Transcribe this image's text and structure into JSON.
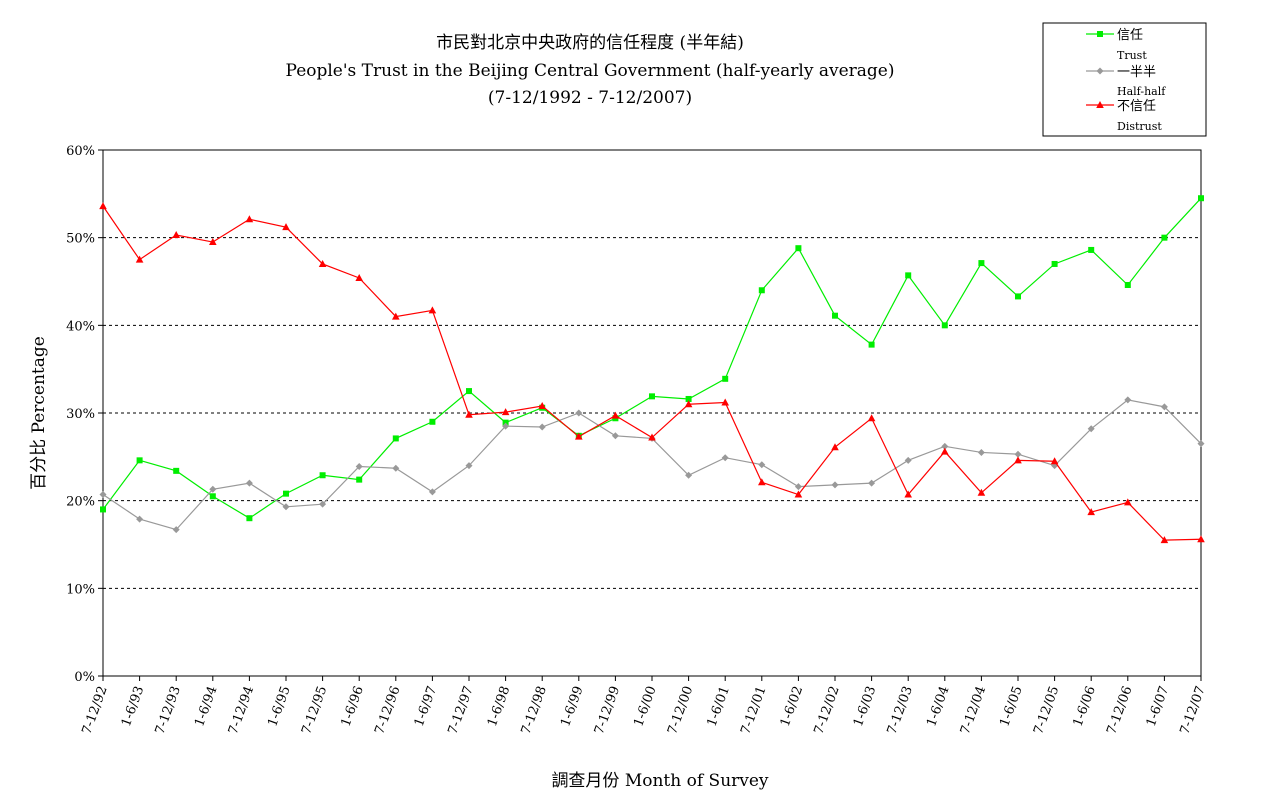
{
  "chart_data": {
    "type": "line",
    "title": [
      "市民對北京中央政府的信任程度 (半年結)",
      "People's Trust in the Beijing Central Government (half-yearly average)",
      "(7-12/1992 - 7-12/2007)"
    ],
    "xlabel": "調查月份 Month of Survey",
    "ylabel": "百分比 Percentage",
    "ylim": [
      0,
      60
    ],
    "yticks": [
      "0%",
      "10%",
      "20%",
      "30%",
      "40%",
      "50%",
      "60%"
    ],
    "grid": "horizontal dashed",
    "legend_position": "top-right",
    "categories": [
      "7-12/92",
      "1-6/93",
      "7-12/93",
      "1-6/94",
      "7-12/94",
      "1-6/95",
      "7-12/95",
      "1-6/96",
      "7-12/96",
      "1-6/97",
      "7-12/97",
      "1-6/98",
      "7-12/98",
      "1-6/99",
      "7-12/99",
      "1-6/00",
      "7-12/00",
      "1-6/01",
      "7-12/01",
      "1-6/02",
      "7-12/02",
      "1-6/03",
      "7-12/03",
      "1-6/04",
      "7-12/04",
      "1-6/05",
      "7-12/05",
      "1-6/06",
      "7-12/06",
      "1-6/07",
      "7-12/07"
    ],
    "series": [
      {
        "name": "信任",
        "name_en": "Trust",
        "color": "#00ee00",
        "marker": "square",
        "values": [
          19.0,
          24.6,
          23.4,
          20.5,
          18.0,
          20.8,
          22.9,
          22.4,
          27.1,
          29.0,
          32.5,
          28.9,
          30.6,
          27.4,
          29.4,
          31.9,
          31.6,
          33.9,
          44.0,
          48.8,
          41.1,
          37.8,
          45.7,
          40.0,
          47.1,
          43.3,
          47.0,
          48.6,
          44.6,
          50.0,
          54.5
        ]
      },
      {
        "name": "一半半",
        "name_en": "Half-half",
        "color": "#999999",
        "marker": "diamond",
        "values": [
          20.7,
          17.9,
          16.7,
          21.3,
          22.0,
          19.3,
          19.6,
          23.9,
          23.7,
          21.0,
          24.0,
          28.5,
          28.4,
          30.0,
          27.4,
          27.1,
          22.9,
          24.9,
          24.1,
          21.6,
          21.8,
          22.0,
          24.6,
          26.2,
          25.5,
          25.3,
          24.0,
          28.2,
          31.5,
          30.7,
          26.5
        ]
      },
      {
        "name": "不信任",
        "name_en": "Distrust",
        "color": "#ff0000",
        "marker": "triangle",
        "values": [
          53.6,
          47.5,
          50.3,
          49.5,
          52.1,
          51.2,
          47.0,
          45.4,
          41.0,
          41.7,
          29.8,
          30.1,
          30.8,
          27.3,
          29.7,
          27.2,
          31.0,
          31.2,
          22.1,
          20.7,
          26.1,
          29.4,
          20.7,
          25.6,
          20.9,
          24.6,
          24.5,
          18.7,
          19.8,
          15.5,
          15.6
        ]
      }
    ]
  }
}
